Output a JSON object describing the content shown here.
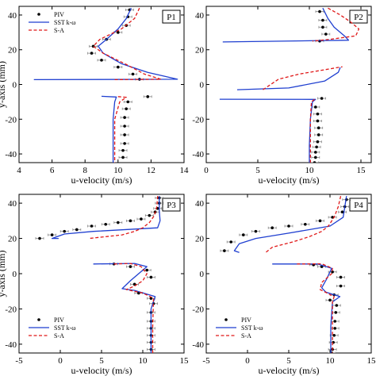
{
  "legend_labels": {
    "piv": "PIV",
    "sst": "SST k-ω",
    "sa": "S-A"
  },
  "colors": {
    "piv": "#000000",
    "sst": "#1f3fd0",
    "sa": "#e01818"
  },
  "chart_data": [
    {
      "type": "line",
      "panel": "P1",
      "xlabel": "u-velocity (m/s)",
      "ylabel": "y-axis (mm)",
      "xlim": [
        4,
        14
      ],
      "ylim": [
        -45,
        45
      ],
      "xticks": [
        4,
        6,
        8,
        10,
        12,
        14
      ],
      "yticks": [
        -40,
        -20,
        0,
        20,
        40
      ],
      "legend_position": "top-right",
      "series": [
        {
          "name": "PIV",
          "style": "markers",
          "x": [
            10.7,
            10.6,
            10.5,
            10.0,
            9.3,
            8.5,
            8.4,
            9.0,
            10.0,
            10.9,
            11.3,
            11.8,
            10.6,
            10.5,
            10.4,
            10.4,
            10.4,
            10.4,
            10.3,
            10.3
          ],
          "y": [
            43,
            39,
            34,
            30,
            26,
            22,
            18,
            14,
            10,
            6,
            3,
            -7,
            -10,
            -14,
            -19,
            -24,
            -29,
            -34,
            -38,
            -42
          ]
        },
        {
          "name": "SST k-ω",
          "style": "solid",
          "segments": [
            {
              "x": [
                10.8,
                10.5,
                10.0,
                9.3,
                8.8,
                9.1,
                10.2,
                11.8,
                13.6,
                4.9
              ],
              "y": [
                44,
                38,
                32,
                26,
                22,
                18,
                12,
                7,
                3,
                2.8
              ]
            },
            {
              "x": [
                9.0,
                9.9,
                9.8,
                9.7,
                9.7,
                9.7
              ],
              "y": [
                -6.8,
                -7.2,
                -10,
                -20,
                -35,
                -45
              ]
            }
          ]
        },
        {
          "name": "S-A",
          "style": "dashed",
          "segments": [
            {
              "x": [
                11.3,
                11.0,
                10.2,
                8.9,
                8.5,
                9.1,
                10.4,
                11.6,
                12.6,
                9.8
              ],
              "y": [
                44,
                38,
                32,
                26,
                22,
                18,
                12,
                6,
                3,
                2.8
              ]
            },
            {
              "x": [
                10.0,
                10.5,
                10.1,
                9.8,
                9.8,
                9.8
              ],
              "y": [
                -7,
                -7.4,
                -10,
                -20,
                -35,
                -45
              ]
            }
          ]
        }
      ]
    },
    {
      "type": "line",
      "panel": "P2",
      "xlabel": "u-velocity (m/s)",
      "ylabel": "",
      "xlim": [
        0,
        16
      ],
      "ylim": [
        -45,
        45
      ],
      "xticks": [
        0,
        5,
        10,
        15
      ],
      "yticks": [
        -40,
        -20,
        0,
        20,
        40
      ],
      "series": [
        {
          "name": "PIV",
          "style": "markers",
          "x": [
            11.0,
            11.3,
            11.3,
            11.6,
            11.0,
            11.2,
            10.6,
            10.8,
            10.8,
            10.9,
            10.9,
            10.8,
            10.7,
            10.6,
            10.6,
            10.5
          ],
          "y": [
            42,
            37,
            33,
            29,
            25,
            -8,
            -13,
            -17,
            -21,
            -25,
            -29,
            -33,
            -36,
            -39,
            -42,
            -45
          ]
        },
        {
          "name": "SST k-ω",
          "style": "solid",
          "segments": [
            {
              "x": [
                11.3,
                11.8,
                12.4,
                13.4,
                13.8,
                1.6
              ],
              "y": [
                44,
                38,
                33,
                28,
                25.5,
                24.5
              ]
            },
            {
              "x": [
                3.0,
                8.0,
                11.5,
                12.8,
                13.0
              ],
              "y": [
                -3,
                -2,
                2,
                7,
                9.8
              ]
            },
            {
              "x": [
                1.3,
                10.6,
                10.3,
                10.1,
                10.0,
                10.0
              ],
              "y": [
                -8.5,
                -8.6,
                -10,
                -20,
                -35,
                -45
              ]
            }
          ]
        },
        {
          "name": "S-A",
          "style": "dashed",
          "segments": [
            {
              "x": [
                11.8,
                13.0,
                14.0,
                14.8,
                14.5,
                12.0,
                10.3
              ],
              "y": [
                44,
                40,
                36,
                32,
                28,
                26,
                25
              ]
            },
            {
              "x": [
                5.5,
                7.0,
                9.0,
                11.5,
                12.8,
                13.2
              ],
              "y": [
                -3,
                3,
                6,
                8.5,
                9.8,
                10.2
              ]
            },
            {
              "x": [
                10.5,
                10.2,
                10.1,
                10.1
              ],
              "y": [
                -8.6,
                -10,
                -20,
                -45
              ]
            }
          ]
        }
      ]
    },
    {
      "type": "line",
      "panel": "P3",
      "xlabel": "u-velocity (m/s)",
      "ylabel": "y-axis (mm)",
      "xlim": [
        -5,
        15
      ],
      "ylim": [
        -45,
        45
      ],
      "xticks": [
        -5,
        0,
        5,
        10,
        15
      ],
      "yticks": [
        -40,
        -20,
        0,
        20,
        40
      ],
      "legend_position": "bottom-left",
      "series": [
        {
          "name": "PIV",
          "style": "markers",
          "x": [
            12.0,
            12.0,
            11.8,
            11.5,
            10.8,
            9.8,
            8.5,
            7.0,
            5.5,
            3.8,
            2.0,
            0.5,
            -1.0,
            -2.5,
            6.5,
            8.5,
            10.5,
            11.0,
            9.0,
            9.5,
            11.0,
            11.3,
            11.0,
            11.0,
            11.0,
            11.0,
            11.0,
            11.0
          ],
          "y": [
            43,
            40,
            37,
            35,
            33,
            31,
            30,
            29,
            28,
            27,
            25,
            24,
            22,
            20,
            5.5,
            4,
            2,
            -2,
            -6,
            -11,
            -14,
            -17,
            -22,
            -27,
            -31,
            -35,
            -39,
            -43
          ]
        },
        {
          "name": "SST k-ω",
          "style": "solid",
          "segments": [
            {
              "x": [
                12.0,
                12.0,
                12.1,
                11.8,
                4.0,
                0.5,
                -1.0,
                -0.2
              ],
              "y": [
                44,
                36,
                30,
                26,
                24,
                22.5,
                20,
                20
              ]
            },
            {
              "x": [
                4.0,
                9.0,
                10.5,
                9.5,
                8.5,
                7.5,
                9.0,
                11.5,
                11.0,
                11.0,
                11.0
              ],
              "y": [
                5.5,
                5.8,
                4,
                0,
                -4,
                -8.5,
                -9.5,
                -13,
                -20,
                -35,
                -45
              ]
            }
          ]
        },
        {
          "name": "S-A",
          "style": "dashed",
          "segments": [
            {
              "x": [
                11.8,
                11.7,
                11.4,
                10.8,
                10.0,
                9.0,
                7.5,
                3.5
              ],
              "y": [
                44,
                38,
                33,
                29,
                26,
                24,
                22,
                20
              ]
            },
            {
              "x": [
                6.5,
                8.5,
                9.8,
                10.5,
                10.0,
                9.0,
                8.0,
                10.0,
                11.3,
                11.2,
                11.2
              ],
              "y": [
                5.5,
                5.8,
                4,
                0,
                -4,
                -7,
                -9,
                -11,
                -14,
                -30,
                -45
              ]
            }
          ]
        }
      ]
    },
    {
      "type": "line",
      "panel": "P4",
      "xlabel": "u-velocity (m/s)",
      "ylabel": "",
      "xlim": [
        -5,
        15
      ],
      "ylim": [
        -45,
        45
      ],
      "xticks": [
        -5,
        0,
        5,
        10,
        15
      ],
      "yticks": [
        -40,
        -20,
        0,
        20,
        40
      ],
      "legend_position": "bottom-left",
      "series": [
        {
          "name": "PIV",
          "style": "markers",
          "x": [
            12.0,
            11.8,
            11.5,
            10.3,
            8.8,
            7.0,
            5.0,
            3.0,
            1.0,
            -0.5,
            -2.0,
            -2.8,
            8.0,
            9.0,
            10.3,
            11.3,
            11.3,
            10.5,
            10.0,
            10.8,
            10.7,
            10.6,
            10.6,
            10.5,
            10.4,
            10.3,
            10.2
          ],
          "y": [
            42,
            38,
            35,
            32,
            30,
            28,
            27,
            26,
            24,
            22,
            18,
            13,
            5,
            4,
            1,
            -2,
            -7,
            -12,
            -15,
            -18,
            -22,
            -27,
            -31,
            -35,
            -39,
            -43,
            -45
          ]
        },
        {
          "name": "SST k-ω",
          "style": "solid",
          "segments": [
            {
              "x": [
                12.0,
                11.8,
                11.6,
                10.0,
                5.0,
                1.0,
                -1.0,
                -1.6,
                -1.0
              ],
              "y": [
                44,
                38,
                32,
                27,
                23,
                20,
                17,
                13,
                12
              ]
            },
            {
              "x": [
                3.0,
                8.5,
                10.2,
                9.6,
                9.0,
                9.5,
                11.2,
                10.3,
                10.1,
                10.1
              ],
              "y": [
                5.5,
                5.5,
                3,
                -3,
                -8,
                -10.5,
                -13,
                -16,
                -30,
                -45
              ]
            }
          ]
        },
        {
          "name": "S-A",
          "style": "dashed",
          "segments": [
            {
              "x": [
                11.3,
                11.0,
                10.5,
                9.8,
                9.0,
                7.5,
                5.5,
                3.0,
                2.2
              ],
              "y": [
                44,
                38,
                32,
                27,
                24,
                21,
                18,
                15,
                12
              ]
            },
            {
              "x": [
                6.0,
                9.0,
                10.3,
                10.2,
                9.0,
                8.8,
                10.5,
                10.3,
                10.3
              ],
              "y": [
                5.5,
                5.6,
                3,
                0,
                -5,
                -9,
                -13,
                -16,
                -45
              ]
            }
          ]
        }
      ]
    }
  ]
}
